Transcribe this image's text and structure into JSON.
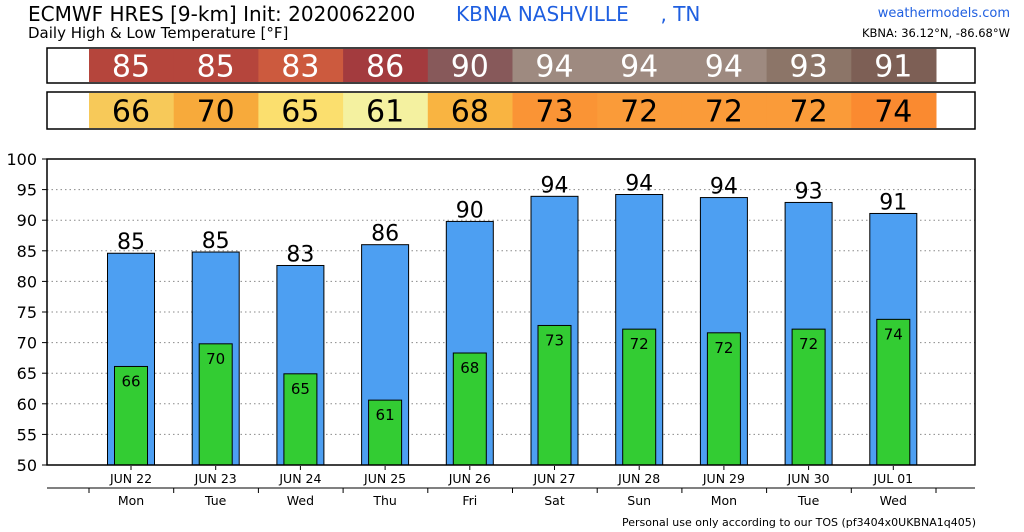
{
  "header": {
    "title": "ECMWF HRES [9-km] Init: 2020062200",
    "subtitle": "Daily High & Low Temperature [°F]",
    "station": "KBNA NASHVILLE     , TN",
    "site": "weathermodels.com",
    "coords": "KBNA: 36.12°N, -86.68°W"
  },
  "footer": {
    "tos": "Personal use only according to our TOS (pf3404x0UKBNA1q405)"
  },
  "colors": {
    "high_bar": "#4d9ff2",
    "low_bar": "#33cc33",
    "high_cells": [
      "#b5453c",
      "#b5453c",
      "#cc5a3e",
      "#a33b3e",
      "#87595a",
      "#9e8a80",
      "#9e8a80",
      "#9e8a80",
      "#8c7568",
      "#7d5f55"
    ],
    "low_cells": [
      "#f7c959",
      "#f7aa3b",
      "#fbdf6e",
      "#f4f1a0",
      "#f9b441",
      "#fa9435",
      "#fa9b39",
      "#fa9b39",
      "#fa9b39",
      "#fa8a30"
    ]
  },
  "chart_data": {
    "type": "bar",
    "categories": [
      "JUN 22",
      "JUN 23",
      "JUN 24",
      "JUN 25",
      "JUN 26",
      "JUN 27",
      "JUN 28",
      "JUN 29",
      "JUN 30",
      "JUL 01"
    ],
    "weekdays": [
      "Mon",
      "Tue",
      "Wed",
      "Thu",
      "Fri",
      "Sat",
      "Sun",
      "Mon",
      "Tue",
      "Wed"
    ],
    "series": [
      {
        "values": [
          84.6,
          84.8,
          82.6,
          86.0,
          89.8,
          93.9,
          94.2,
          93.7,
          92.9,
          91.1
        ],
        "labels": [
          "85",
          "85",
          "83",
          "86",
          "90",
          "94",
          "94",
          "94",
          "93",
          "91"
        ]
      },
      {
        "values": [
          66.1,
          69.8,
          64.9,
          60.6,
          68.3,
          72.8,
          72.2,
          71.6,
          72.2,
          73.8
        ],
        "labels": [
          "66",
          "70",
          "65",
          "61",
          "68",
          "73",
          "72",
          "72",
          "72",
          "74"
        ]
      }
    ],
    "ylim": [
      50,
      100
    ],
    "yticks": [
      "50",
      "55",
      "60",
      "65",
      "70",
      "75",
      "80",
      "85",
      "90",
      "95",
      "100"
    ],
    "grid": true
  }
}
